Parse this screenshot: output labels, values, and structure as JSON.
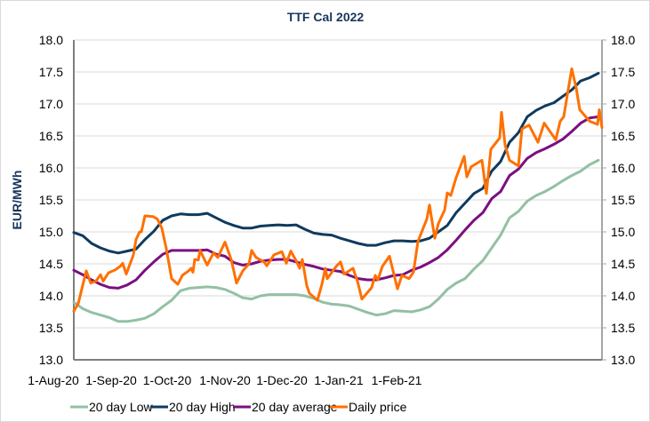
{
  "chart_data": {
    "type": "line",
    "title": "TTF Cal 2022",
    "ylabel": "EUR/MWh",
    "secondary_ylabel": "",
    "xlabel": "",
    "ylim": [
      13.0,
      18.0
    ],
    "y_ticks": [
      "13.0",
      "13.5",
      "14.0",
      "14.5",
      "15.0",
      "15.5",
      "16.0",
      "16.5",
      "17.0",
      "17.5",
      "18.0"
    ],
    "y_tick_values": [
      13.0,
      13.5,
      14.0,
      14.5,
      15.0,
      15.5,
      16.0,
      16.5,
      17.0,
      17.5,
      18.0
    ],
    "xlim": [
      0,
      59.4
    ],
    "x_ticks": [
      {
        "label": "1-Aug-20",
        "x": -2.3
      },
      {
        "label": "1-Sep-20",
        "x": 4.2
      },
      {
        "label": "1-Oct-20",
        "x": 10.5
      },
      {
        "label": "1-Nov-20",
        "x": 17.0
      },
      {
        "label": "1-Dec-20",
        "x": 23.4
      },
      {
        "label": "1-Jan-21",
        "x": 29.8
      },
      {
        "label": "1-Feb-21",
        "x": 36.3
      }
    ],
    "grid": true,
    "legend": "bottom",
    "series": [
      {
        "name": "20 day Low",
        "color": "#93c0a4",
        "values": [
          13.9,
          13.8,
          13.74,
          13.7,
          13.66,
          13.6,
          13.6,
          13.62,
          13.65,
          13.72,
          13.83,
          13.93,
          14.08,
          14.12,
          14.13,
          14.14,
          14.13,
          14.1,
          14.04,
          13.97,
          13.95,
          14.0,
          14.02,
          14.02,
          14.02,
          14.02,
          14.0,
          13.96,
          13.9,
          13.87,
          13.86,
          13.84,
          13.79,
          13.74,
          13.7,
          13.72,
          13.77,
          13.76,
          13.75,
          13.78,
          13.83,
          13.95,
          14.1,
          14.2,
          14.27,
          14.42,
          14.55,
          14.75,
          14.95,
          15.22,
          15.32,
          15.48,
          15.57,
          15.63,
          15.71,
          15.8,
          15.88,
          15.95,
          16.05,
          16.12
        ]
      },
      {
        "name": "20 day High",
        "color": "#0f3a5e",
        "values": [
          14.99,
          14.94,
          14.82,
          14.75,
          14.7,
          14.67,
          14.7,
          14.73,
          14.88,
          15.01,
          15.18,
          15.25,
          15.28,
          15.27,
          15.27,
          15.29,
          15.22,
          15.15,
          15.1,
          15.06,
          15.06,
          15.09,
          15.1,
          15.11,
          15.1,
          15.11,
          15.04,
          14.98,
          14.96,
          14.95,
          14.9,
          14.86,
          14.82,
          14.79,
          14.79,
          14.83,
          14.86,
          14.86,
          14.85,
          14.86,
          14.9,
          15.0,
          15.1,
          15.3,
          15.45,
          15.6,
          15.68,
          15.95,
          16.1,
          16.4,
          16.55,
          16.8,
          16.9,
          16.97,
          17.02,
          17.12,
          17.22,
          17.36,
          17.41,
          17.48
        ]
      },
      {
        "name": "20 day average",
        "color": "#7b0f80",
        "values": [
          14.4,
          14.33,
          14.25,
          14.18,
          14.13,
          14.12,
          14.17,
          14.25,
          14.4,
          14.53,
          14.65,
          14.71,
          14.71,
          14.71,
          14.71,
          14.72,
          14.65,
          14.62,
          14.52,
          14.48,
          14.5,
          14.54,
          14.56,
          14.57,
          14.57,
          14.53,
          14.49,
          14.46,
          14.42,
          14.4,
          14.38,
          14.32,
          14.27,
          14.25,
          14.25,
          14.28,
          14.32,
          14.33,
          14.4,
          14.45,
          14.52,
          14.6,
          14.72,
          14.87,
          15.03,
          15.18,
          15.3,
          15.52,
          15.63,
          15.88,
          15.98,
          16.15,
          16.24,
          16.3,
          16.37,
          16.45,
          16.57,
          16.7,
          16.78,
          16.8
        ]
      },
      {
        "name": "Daily price",
        "color": "#ff7000",
        "points": [
          [
            0,
            13.76
          ],
          [
            0.5,
            13.88
          ],
          [
            1.4,
            14.39
          ],
          [
            1.9,
            14.2
          ],
          [
            2.5,
            14.23
          ],
          [
            3,
            14.33
          ],
          [
            3.3,
            14.23
          ],
          [
            3.9,
            14.36
          ],
          [
            4.7,
            14.41
          ],
          [
            5.2,
            14.46
          ],
          [
            5.5,
            14.51
          ],
          [
            5.9,
            14.34
          ],
          [
            6.7,
            14.64
          ],
          [
            7,
            14.88
          ],
          [
            7.4,
            15.0
          ],
          [
            7.6,
            15.0
          ],
          [
            8,
            15.25
          ],
          [
            8.9,
            15.24
          ],
          [
            9.4,
            15.2
          ],
          [
            9.9,
            15.06
          ],
          [
            10.4,
            14.74
          ],
          [
            11,
            14.27
          ],
          [
            11.7,
            14.18
          ],
          [
            12.2,
            14.32
          ],
          [
            12.9,
            14.39
          ],
          [
            13.2,
            14.43
          ],
          [
            13.4,
            14.37
          ],
          [
            13.6,
            14.57
          ],
          [
            14,
            14.56
          ],
          [
            14.2,
            14.71
          ],
          [
            15,
            14.48
          ],
          [
            15.7,
            14.67
          ],
          [
            16.2,
            14.6
          ],
          [
            17,
            14.84
          ],
          [
            17.7,
            14.57
          ],
          [
            18.3,
            14.2
          ],
          [
            19,
            14.39
          ],
          [
            19.7,
            14.5
          ],
          [
            20,
            14.71
          ],
          [
            20.5,
            14.6
          ],
          [
            21.4,
            14.53
          ],
          [
            21.7,
            14.47
          ],
          [
            22.1,
            14.55
          ],
          [
            22.5,
            14.64
          ],
          [
            23.4,
            14.69
          ],
          [
            23.9,
            14.51
          ],
          [
            24.4,
            14.7
          ],
          [
            25,
            14.55
          ],
          [
            25.4,
            14.43
          ],
          [
            25.7,
            14.57
          ],
          [
            26.2,
            14.16
          ],
          [
            26.5,
            14.04
          ],
          [
            27.4,
            13.93
          ],
          [
            27.9,
            14.18
          ],
          [
            28.3,
            14.43
          ],
          [
            28.5,
            14.27
          ],
          [
            29.5,
            14.46
          ],
          [
            30,
            14.53
          ],
          [
            30.4,
            14.34
          ],
          [
            31.4,
            14.43
          ],
          [
            31.9,
            14.23
          ],
          [
            32.4,
            13.95
          ],
          [
            33.5,
            14.13
          ],
          [
            33.9,
            14.32
          ],
          [
            34.2,
            14.25
          ],
          [
            34.7,
            14.46
          ],
          [
            35.5,
            14.62
          ],
          [
            36.4,
            14.11
          ],
          [
            36.9,
            14.32
          ],
          [
            37.7,
            14.27
          ],
          [
            38.2,
            14.37
          ],
          [
            38.7,
            14.85
          ],
          [
            39.7,
            15.2
          ],
          [
            40,
            15.42
          ],
          [
            40.6,
            14.9
          ],
          [
            41,
            15.13
          ],
          [
            41.7,
            15.34
          ],
          [
            42,
            15.61
          ],
          [
            42.4,
            15.57
          ],
          [
            43,
            15.85
          ],
          [
            43.9,
            16.18
          ],
          [
            44.2,
            15.86
          ],
          [
            44.7,
            16.02
          ],
          [
            45.9,
            16.12
          ],
          [
            46.4,
            15.6
          ],
          [
            46.9,
            16.29
          ],
          [
            47.9,
            16.47
          ],
          [
            48.1,
            16.87
          ],
          [
            48.5,
            16.36
          ],
          [
            49,
            16.12
          ],
          [
            50,
            16.03
          ],
          [
            50.4,
            16.61
          ],
          [
            51.2,
            16.67
          ],
          [
            52.2,
            16.4
          ],
          [
            52.9,
            16.7
          ],
          [
            54.2,
            16.44
          ],
          [
            54.7,
            16.73
          ],
          [
            55.1,
            16.8
          ],
          [
            55.5,
            17.14
          ],
          [
            56,
            17.55
          ],
          [
            56.5,
            17.25
          ],
          [
            56.9,
            16.91
          ],
          [
            58,
            16.73
          ],
          [
            58.9,
            16.68
          ],
          [
            59.1,
            16.91
          ],
          [
            59.4,
            16.63
          ]
        ]
      }
    ]
  }
}
